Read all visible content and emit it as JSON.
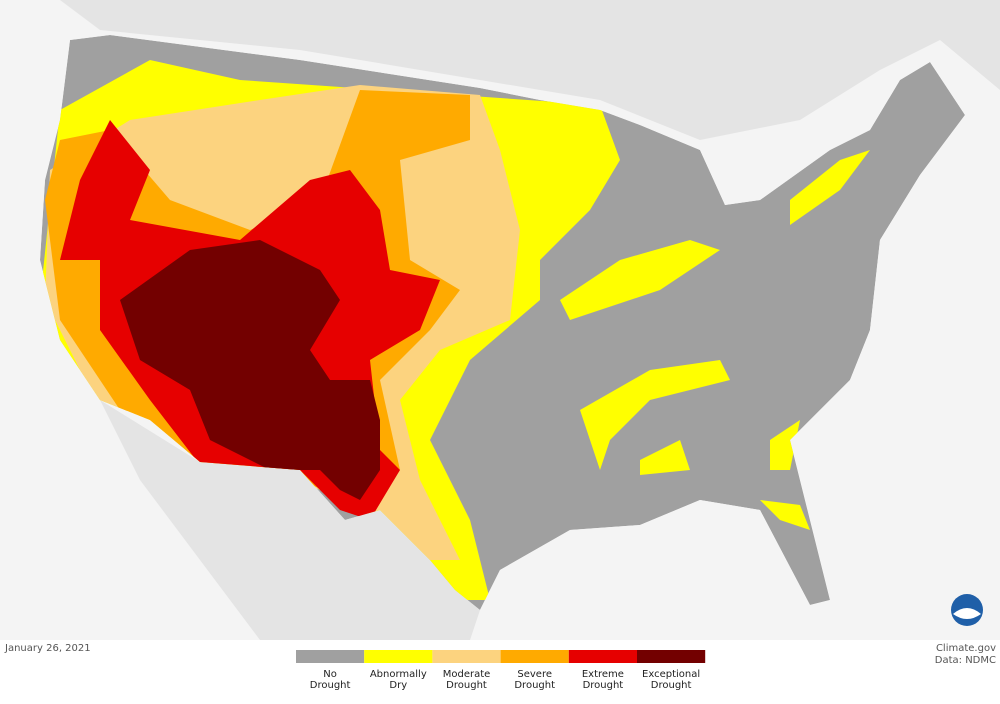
{
  "date": "January 26, 2021",
  "legend": {
    "items": [
      {
        "label": "No Drought",
        "color": "#a0a0a0"
      },
      {
        "label": "Abnormally Dry",
        "color": "#ffff00"
      },
      {
        "label": "Moderate Drought",
        "color": "#fcd37f"
      },
      {
        "label": "Severe Drought",
        "color": "#ffaa00"
      },
      {
        "label": "Extreme Drought",
        "color": "#e60000"
      },
      {
        "label": "Exceptional Drought",
        "color": "#730000"
      }
    ]
  },
  "credits": [
    "Climate.gov",
    "Data: NDMC"
  ]
}
